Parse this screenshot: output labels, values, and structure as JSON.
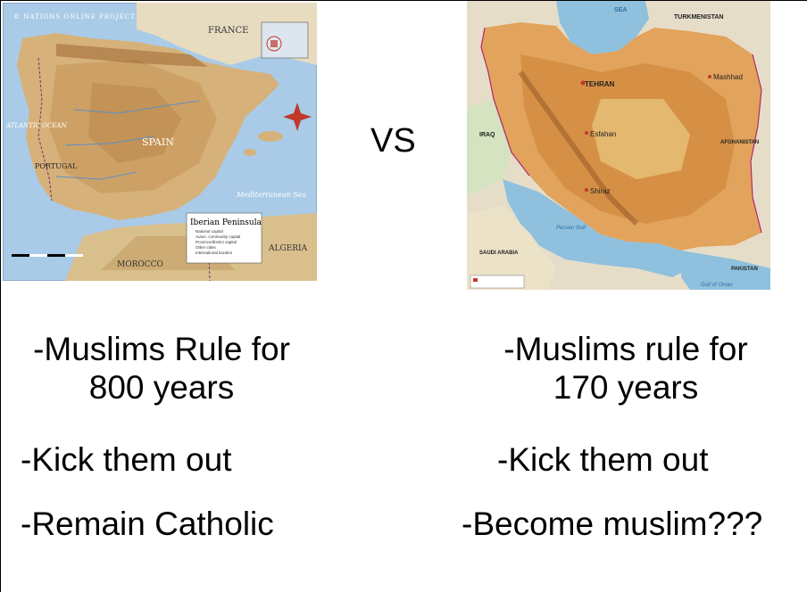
{
  "left_map": {
    "header": "© NATIONS ONLINE PROJECT",
    "country_france": "FRANCE",
    "country_spain": "SPAIN",
    "country_portugal": "PORTUGAL",
    "country_morocco": "MOROCCO",
    "country_algeria": "ALGERIA",
    "sea_label": "Mediterranean Sea",
    "ocean_label": "ATLANTIC OCEAN",
    "legend_title": "Iberian Peninsula",
    "legend_items": [
      "National capital",
      "Auton. community capital",
      "Province/district capital",
      "Other cities",
      "International borders"
    ]
  },
  "right_map": {
    "label_sea": "SEA",
    "label_turkmenistan": "TURKMENISTAN",
    "label_tehran": "TEHRAN",
    "label_iraq": "IRAQ",
    "label_afghanistan": "AFGHANISTAN",
    "label_saudi": "SAUDI ARABIA",
    "label_pakistan": "PAKISTAN",
    "label_mashhad": "Mashhad",
    "label_esfahan": "Esfahan",
    "label_shiraz": "Shiraz",
    "label_persian_gulf": "Persian Gulf",
    "label_gulf_oman": "Gulf of Oman"
  },
  "vs": "VS",
  "left_col": {
    "line1": "-Muslims Rule for",
    "line2": "800 years",
    "kick": "-Kick them out",
    "result": "-Remain Catholic"
  },
  "right_col": {
    "line1": "-Muslims rule for",
    "line2": "170 years",
    "kick": "-Kick them out",
    "result": "-Become muslim???"
  }
}
